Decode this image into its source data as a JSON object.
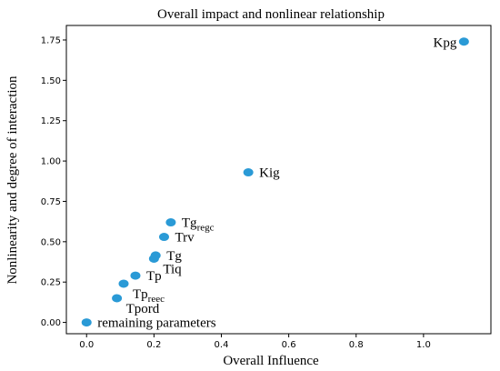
{
  "chart_data": {
    "type": "scatter",
    "title": "Overall impact and nonlinear relationship",
    "xlabel": "Overall Influence",
    "ylabel": "Nonlinearity and degree of interaction",
    "xlim": [
      -0.06,
      1.2
    ],
    "ylim": [
      -0.07,
      1.84
    ],
    "xticks": [
      "0.0",
      "0.2",
      "0.4",
      "0.6",
      "0.8",
      "1.0"
    ],
    "xtick_values": [
      0.0,
      0.2,
      0.4,
      0.6,
      0.8,
      1.0
    ],
    "yticks": [
      "0.00",
      "0.25",
      "0.50",
      "0.75",
      "1.00",
      "1.25",
      "1.50",
      "1.75"
    ],
    "ytick_values": [
      0.0,
      0.25,
      0.5,
      0.75,
      1.0,
      1.25,
      1.5,
      1.75
    ],
    "grid": false,
    "marker_color": "#2a9ad6",
    "points": [
      {
        "label": "Kpg",
        "sub": "",
        "x": 1.12,
        "y": 1.74,
        "label_pos": "left"
      },
      {
        "label": "Kig",
        "sub": "",
        "x": 0.48,
        "y": 0.93,
        "label_pos": "right"
      },
      {
        "label": "Tg",
        "sub": "regc",
        "x": 0.25,
        "y": 0.62,
        "label_pos": "right"
      },
      {
        "label": "Trv",
        "sub": "",
        "x": 0.23,
        "y": 0.53,
        "label_pos": "right"
      },
      {
        "label": "Tg",
        "sub": "",
        "x": 0.205,
        "y": 0.415,
        "label_pos": "right"
      },
      {
        "label": "Tiq",
        "sub": "",
        "x": 0.2,
        "y": 0.395,
        "label_pos": "right-below"
      },
      {
        "label": "Tp",
        "sub": "",
        "x": 0.145,
        "y": 0.29,
        "label_pos": "right"
      },
      {
        "label": "Tp",
        "sub": "reec",
        "x": 0.11,
        "y": 0.24,
        "label_pos": "right-below"
      },
      {
        "label": "Tpord",
        "sub": "",
        "x": 0.09,
        "y": 0.15,
        "label_pos": "right-below"
      },
      {
        "label": "remaining parameters",
        "sub": "",
        "x": 0.0,
        "y": 0.0,
        "label_pos": "right"
      }
    ]
  }
}
